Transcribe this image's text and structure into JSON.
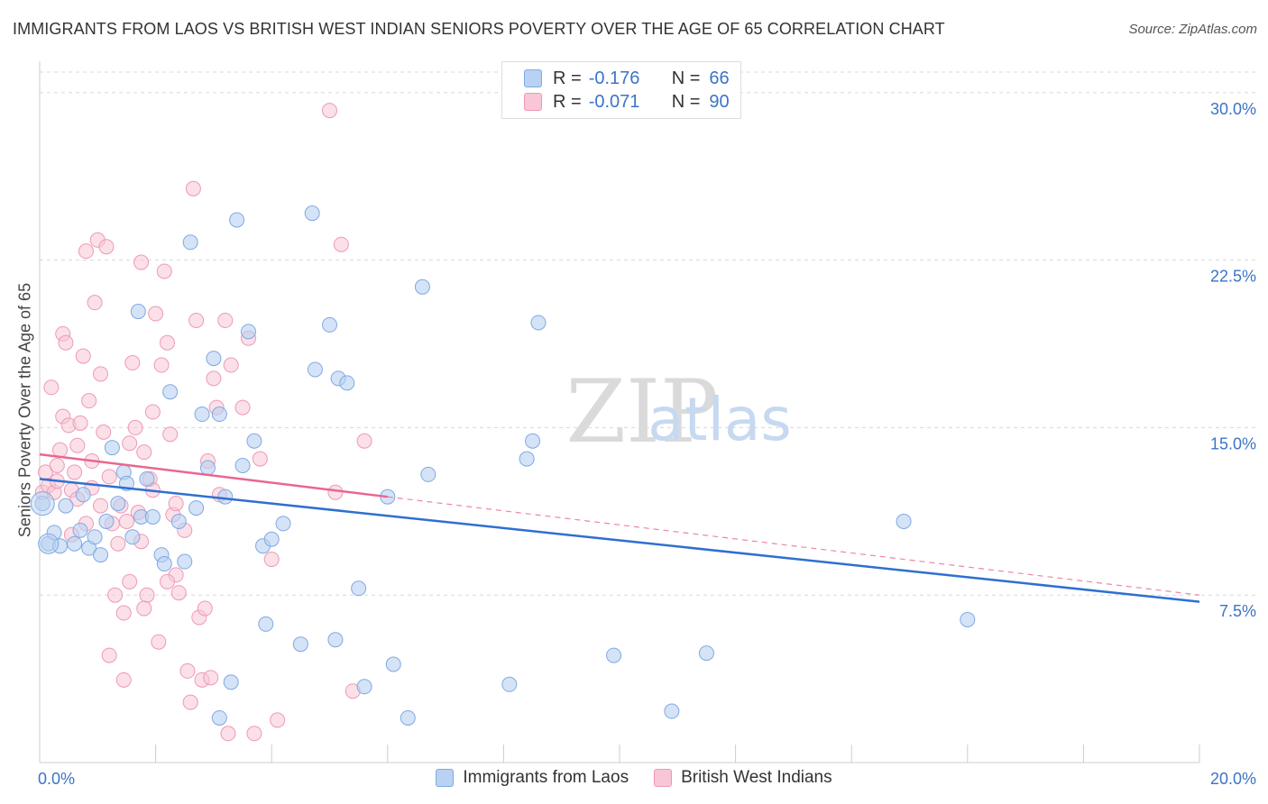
{
  "title": "IMMIGRANTS FROM LAOS VS BRITISH WEST INDIAN SENIORS POVERTY OVER THE AGE OF 65 CORRELATION CHART",
  "source": "Source: ZipAtlas.com",
  "watermark": {
    "zip": "ZIP",
    "atlas": "atlas"
  },
  "legend_stats": [
    {
      "r_label": "R =",
      "r_value": "-0.176",
      "n_label": "N =",
      "n_value": "66"
    },
    {
      "r_label": "R =",
      "r_value": "-0.071",
      "n_label": "N =",
      "n_value": "90"
    }
  ],
  "colors": {
    "blue_fill": "#b9d1f2",
    "blue_stroke": "#7fa9e3",
    "blue_line": "#2f6fd0",
    "pink_fill": "#f8c6d6",
    "pink_stroke": "#ee99b5",
    "pink_line": "#e8678f",
    "axis_text": "#3b74c8",
    "grid": "#d8d8d8"
  },
  "chart_data": {
    "type": "scatter",
    "title": "IMMIGRANTS FROM LAOS VS BRITISH WEST INDIAN SENIORS POVERTY OVER THE AGE OF 65 CORRELATION CHART",
    "xlabel": "",
    "ylabel": "Seniors Poverty Over the Age of 65",
    "xlim": [
      0,
      20
    ],
    "ylim": [
      0,
      31
    ],
    "x_tick_labels": [
      "0.0%",
      "20.0%"
    ],
    "y_ticks": [
      7.5,
      15.0,
      22.5,
      30.0
    ],
    "y_tick_labels": [
      "7.5%",
      "15.0%",
      "22.5%",
      "30.0%"
    ],
    "grid": true,
    "legend_position": "bottom",
    "series": [
      {
        "name": "Immigrants from Laos",
        "r": -0.176,
        "n": 66,
        "trendline": {
          "x": [
            0,
            20
          ],
          "y": [
            12.7,
            7.2
          ]
        },
        "points": [
          [
            0.05,
            11.6
          ],
          [
            0.15,
            9.8
          ],
          [
            0.25,
            10.3
          ],
          [
            0.35,
            9.7
          ],
          [
            0.45,
            11.5
          ],
          [
            0.6,
            9.8
          ],
          [
            0.7,
            10.4
          ],
          [
            0.75,
            12.0
          ],
          [
            0.85,
            9.6
          ],
          [
            0.95,
            10.1
          ],
          [
            1.05,
            9.3
          ],
          [
            1.15,
            10.8
          ],
          [
            1.25,
            14.1
          ],
          [
            1.35,
            11.6
          ],
          [
            1.45,
            13.0
          ],
          [
            1.5,
            12.5
          ],
          [
            1.6,
            10.1
          ],
          [
            1.7,
            20.2
          ],
          [
            1.75,
            11.0
          ],
          [
            1.85,
            12.7
          ],
          [
            1.95,
            11.0
          ],
          [
            2.1,
            9.3
          ],
          [
            2.15,
            8.9
          ],
          [
            2.25,
            16.6
          ],
          [
            2.4,
            10.8
          ],
          [
            2.5,
            9.0
          ],
          [
            2.6,
            23.3
          ],
          [
            2.7,
            11.4
          ],
          [
            2.8,
            15.6
          ],
          [
            2.9,
            13.2
          ],
          [
            3.0,
            18.1
          ],
          [
            3.1,
            15.6
          ],
          [
            3.2,
            11.9
          ],
          [
            3.3,
            3.6
          ],
          [
            3.4,
            24.3
          ],
          [
            3.5,
            13.3
          ],
          [
            3.6,
            19.3
          ],
          [
            3.7,
            14.4
          ],
          [
            3.85,
            9.7
          ],
          [
            3.9,
            6.2
          ],
          [
            4.0,
            10.0
          ],
          [
            4.2,
            10.7
          ],
          [
            4.5,
            5.3
          ],
          [
            4.7,
            24.6
          ],
          [
            4.75,
            17.6
          ],
          [
            5.0,
            19.6
          ],
          [
            5.1,
            5.5
          ],
          [
            5.15,
            17.2
          ],
          [
            5.3,
            17.0
          ],
          [
            5.5,
            7.8
          ],
          [
            5.6,
            3.4
          ],
          [
            6.0,
            11.9
          ],
          [
            6.1,
            4.4
          ],
          [
            6.35,
            2.0
          ],
          [
            6.6,
            21.3
          ],
          [
            6.7,
            12.9
          ],
          [
            8.1,
            3.5
          ],
          [
            8.4,
            13.6
          ],
          [
            8.5,
            14.4
          ],
          [
            8.6,
            19.7
          ],
          [
            9.9,
            4.8
          ],
          [
            10.9,
            2.3
          ],
          [
            11.5,
            4.9
          ],
          [
            3.1,
            2.0
          ],
          [
            14.9,
            10.8
          ],
          [
            16.0,
            6.4
          ]
        ]
      },
      {
        "name": "British West Indians",
        "r": -0.071,
        "n": 90,
        "trendline": {
          "x": [
            0,
            6.0
          ],
          "y": [
            13.8,
            11.9
          ],
          "extended_to": [
            20,
            7.5
          ]
        },
        "points": [
          [
            0.05,
            12.1
          ],
          [
            0.1,
            13.0
          ],
          [
            0.15,
            12.4
          ],
          [
            0.2,
            16.8
          ],
          [
            0.25,
            12.1
          ],
          [
            0.3,
            13.3
          ],
          [
            0.35,
            14.0
          ],
          [
            0.4,
            15.5
          ],
          [
            0.4,
            19.2
          ],
          [
            0.45,
            18.8
          ],
          [
            0.5,
            15.1
          ],
          [
            0.55,
            12.2
          ],
          [
            0.6,
            13.0
          ],
          [
            0.65,
            14.2
          ],
          [
            0.7,
            15.2
          ],
          [
            0.75,
            18.2
          ],
          [
            0.8,
            22.9
          ],
          [
            0.85,
            16.2
          ],
          [
            0.9,
            13.5
          ],
          [
            0.95,
            20.6
          ],
          [
            1.0,
            23.4
          ],
          [
            1.05,
            17.4
          ],
          [
            1.1,
            14.8
          ],
          [
            1.15,
            23.1
          ],
          [
            1.2,
            12.8
          ],
          [
            1.25,
            10.7
          ],
          [
            1.3,
            7.5
          ],
          [
            1.4,
            11.5
          ],
          [
            1.45,
            6.7
          ],
          [
            1.5,
            10.8
          ],
          [
            1.55,
            8.1
          ],
          [
            1.6,
            17.9
          ],
          [
            1.65,
            15.0
          ],
          [
            1.7,
            11.2
          ],
          [
            1.75,
            22.4
          ],
          [
            1.8,
            13.9
          ],
          [
            1.85,
            7.5
          ],
          [
            1.9,
            12.7
          ],
          [
            1.95,
            15.7
          ],
          [
            2.0,
            20.1
          ],
          [
            2.1,
            17.8
          ],
          [
            2.15,
            22.0
          ],
          [
            2.2,
            18.8
          ],
          [
            2.25,
            14.7
          ],
          [
            2.3,
            11.1
          ],
          [
            2.35,
            8.4
          ],
          [
            2.4,
            7.6
          ],
          [
            2.5,
            10.4
          ],
          [
            2.55,
            4.1
          ],
          [
            2.6,
            2.7
          ],
          [
            2.65,
            25.7
          ],
          [
            2.7,
            19.8
          ],
          [
            2.75,
            6.5
          ],
          [
            2.8,
            3.7
          ],
          [
            2.85,
            6.9
          ],
          [
            2.9,
            13.5
          ],
          [
            2.95,
            3.8
          ],
          [
            3.0,
            17.2
          ],
          [
            3.05,
            15.9
          ],
          [
            3.1,
            12.0
          ],
          [
            3.2,
            19.8
          ],
          [
            3.25,
            1.3
          ],
          [
            3.3,
            17.8
          ],
          [
            3.5,
            15.9
          ],
          [
            3.6,
            19.0
          ],
          [
            3.7,
            1.3
          ],
          [
            3.8,
            13.6
          ],
          [
            4.0,
            9.1
          ],
          [
            4.1,
            1.9
          ],
          [
            5.0,
            29.2
          ],
          [
            5.1,
            12.1
          ],
          [
            5.2,
            23.2
          ],
          [
            5.4,
            3.2
          ],
          [
            5.6,
            14.4
          ],
          [
            0.9,
            12.3
          ],
          [
            1.05,
            11.5
          ],
          [
            1.35,
            9.8
          ],
          [
            1.8,
            6.9
          ],
          [
            0.55,
            10.2
          ],
          [
            2.2,
            8.1
          ],
          [
            1.2,
            4.8
          ],
          [
            1.45,
            3.7
          ],
          [
            0.3,
            12.6
          ],
          [
            0.65,
            11.8
          ],
          [
            1.75,
            9.9
          ],
          [
            2.35,
            11.6
          ],
          [
            1.95,
            12.2
          ],
          [
            0.8,
            10.7
          ],
          [
            1.55,
            14.3
          ],
          [
            2.05,
            5.4
          ]
        ]
      }
    ]
  },
  "legend_bottom": [
    {
      "label": "Immigrants from Laos"
    },
    {
      "label": "British West Indians"
    }
  ]
}
